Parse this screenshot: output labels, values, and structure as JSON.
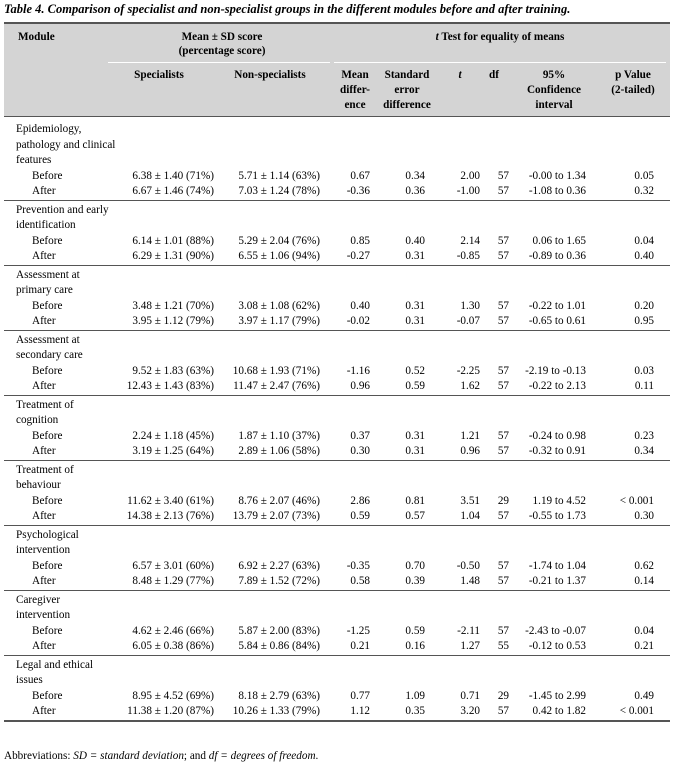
{
  "caption": "Table 4. Comparison of specialist and non-specialist groups in the different modules before and after training.",
  "headers": {
    "module": "Module",
    "mean_sd_line1": "Mean ± SD score",
    "mean_sd_line2": "(percentage score)",
    "ttest_italic": "t",
    "ttest_rest": " Test for equality of means",
    "specialists": "Specialists",
    "non_specialists": "Non-specialists",
    "mean_diff": [
      "Mean",
      "differ-",
      "ence"
    ],
    "se_diff": [
      "Standard",
      "error",
      "difference"
    ],
    "t": "t",
    "df": "df",
    "ci": [
      "95%",
      "Confidence",
      "interval"
    ],
    "p": [
      "p Value",
      "(2-tailed)"
    ]
  },
  "modules": [
    {
      "title": "Epidemiology, pathology and clinical features",
      "rows": [
        {
          "label": "Before",
          "spec": "6.38 ± 1.40 (71%)",
          "non": "5.71 ± 1.14 (63%)",
          "md": "0.67",
          "se": "0.34",
          "t": "2.00",
          "df": "57",
          "ci": "-0.00 to 1.34",
          "p": "0.05"
        },
        {
          "label": "After",
          "spec": "6.67 ± 1.46 (74%)",
          "non": "7.03 ± 1.24 (78%)",
          "md": "-0.36",
          "se": "0.36",
          "t": "-1.00",
          "df": "57",
          "ci": "-1.08 to 0.36",
          "p": "0.32"
        }
      ]
    },
    {
      "title": "Prevention and early identification",
      "rows": [
        {
          "label": "Before",
          "spec": "6.14 ± 1.01 (88%)",
          "non": "5.29 ± 2.04 (76%)",
          "md": "0.85",
          "se": "0.40",
          "t": "2.14",
          "df": "57",
          "ci": "0.06 to 1.65",
          "p": "0.04"
        },
        {
          "label": "After",
          "spec": "6.29 ± 1.31 (90%)",
          "non": "6.55 ± 1.06 (94%)",
          "md": "-0.27",
          "se": "0.31",
          "t": "-0.85",
          "df": "57",
          "ci": "-0.89 to 0.36",
          "p": "0.40"
        }
      ]
    },
    {
      "title": "Assessment at primary care",
      "rows": [
        {
          "label": "Before",
          "spec": "3.48 ± 1.21 (70%)",
          "non": "3.08 ± 1.08 (62%)",
          "md": "0.40",
          "se": "0.31",
          "t": "1.30",
          "df": "57",
          "ci": "-0.22 to 1.01",
          "p": "0.20"
        },
        {
          "label": "After",
          "spec": "3.95 ± 1.12 (79%)",
          "non": "3.97 ± 1.17 (79%)",
          "md": "-0.02",
          "se": "0.31",
          "t": "-0.07",
          "df": "57",
          "ci": "-0.65 to 0.61",
          "p": "0.95"
        }
      ]
    },
    {
      "title": "Assessment at secondary care",
      "rows": [
        {
          "label": "Before",
          "spec": "9.52 ± 1.83 (63%)",
          "non": "10.68 ± 1.93 (71%)",
          "md": "-1.16",
          "se": "0.52",
          "t": "-2.25",
          "df": "57",
          "ci": "-2.19 to -0.13",
          "p": "0.03"
        },
        {
          "label": "After",
          "spec": "12.43 ± 1.43 (83%)",
          "non": "11.47 ± 2.47 (76%)",
          "md": "0.96",
          "se": "0.59",
          "t": "1.62",
          "df": "57",
          "ci": "-0.22 to 2.13",
          "p": "0.11"
        }
      ]
    },
    {
      "title": "Treatment of cognition",
      "rows": [
        {
          "label": "Before",
          "spec": "2.24 ± 1.18 (45%)",
          "non": "1.87 ± 1.10 (37%)",
          "md": "0.37",
          "se": "0.31",
          "t": "1.21",
          "df": "57",
          "ci": "-0.24 to 0.98",
          "p": "0.23"
        },
        {
          "label": "After",
          "spec": "3.19 ± 1.25 (64%)",
          "non": "2.89 ± 1.06 (58%)",
          "md": "0.30",
          "se": "0.31",
          "t": "0.96",
          "df": "57",
          "ci": "-0.32 to 0.91",
          "p": "0.34"
        }
      ]
    },
    {
      "title": "Treatment of behaviour",
      "rows": [
        {
          "label": "Before",
          "spec": "11.62 ± 3.40 (61%)",
          "non": "8.76 ± 2.07 (46%)",
          "md": "2.86",
          "se": "0.81",
          "t": "3.51",
          "df": "29",
          "ci": "1.19 to 4.52",
          "p": "< 0.001"
        },
        {
          "label": "After",
          "spec": "14.38 ± 2.13 (76%)",
          "non": "13.79 ± 2.07 (73%)",
          "md": "0.59",
          "se": "0.57",
          "t": "1.04",
          "df": "57",
          "ci": "-0.55 to 1.73",
          "p": "0.30"
        }
      ]
    },
    {
      "title": "Psychological intervention",
      "rows": [
        {
          "label": "Before",
          "spec": "6.57 ± 3.01 (60%)",
          "non": "6.92 ± 2.27 (63%)",
          "md": "-0.35",
          "se": "0.70",
          "t": "-0.50",
          "df": "57",
          "ci": "-1.74 to 1.04",
          "p": "0.62"
        },
        {
          "label": "After",
          "spec": "8.48 ± 1.29 (77%)",
          "non": "7.89 ± 1.52 (72%)",
          "md": "0.58",
          "se": "0.39",
          "t": "1.48",
          "df": "57",
          "ci": "-0.21 to 1.37",
          "p": "0.14"
        }
      ]
    },
    {
      "title": "Caregiver intervention",
      "rows": [
        {
          "label": "Before",
          "spec": "4.62 ± 2.46 (66%)",
          "non": "5.87 ± 2.00 (83%)",
          "md": "-1.25",
          "se": "0.59",
          "t": "-2.11",
          "df": "57",
          "ci": "-2.43 to -0.07",
          "p": "0.04"
        },
        {
          "label": "After",
          "spec": "6.05 ± 0.38 (86%)",
          "non": "5.84 ± 0.86 (84%)",
          "md": "0.21",
          "se": "0.16",
          "t": "1.27",
          "df": "55",
          "ci": "-0.12 to 0.53",
          "p": "0.21"
        }
      ]
    },
    {
      "title": "Legal and ethical issues",
      "rows": [
        {
          "label": "Before",
          "spec": "8.95 ± 4.52 (69%)",
          "non": "8.18 ± 2.79 (63%)",
          "md": "0.77",
          "se": "1.09",
          "t": "0.71",
          "df": "29",
          "ci": "-1.45 to 2.99",
          "p": "0.49"
        },
        {
          "label": "After",
          "spec": "11.38 ± 1.20 (87%)",
          "non": "10.26 ± 1.33 (79%)",
          "md": "1.12",
          "se": "0.35",
          "t": "3.20",
          "df": "57",
          "ci": "0.42 to 1.82",
          "p": "< 0.001"
        }
      ]
    }
  ],
  "footnote": "Abbreviations: SD = standard deviation; and df = degrees of freedom."
}
